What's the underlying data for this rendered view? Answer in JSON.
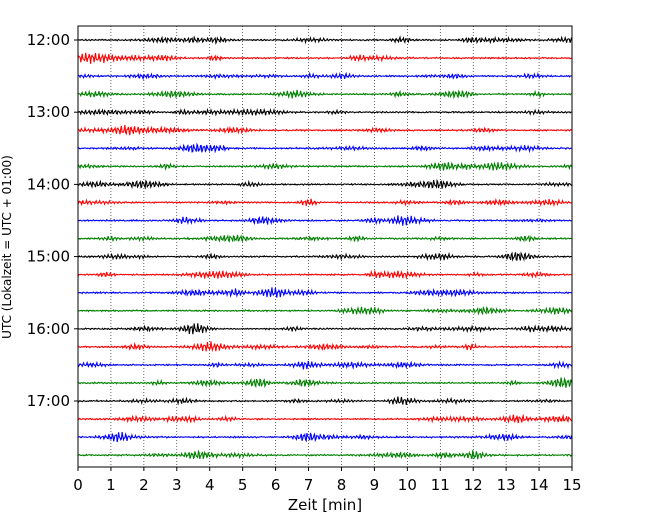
{
  "chart_data": {
    "type": "line",
    "title": "",
    "xlabel": "Zeit  [min]",
    "ylabel": "UTC (Lokalzeit = UTC + 01:00)",
    "xlim": [
      0,
      15
    ],
    "x_ticks": [
      "0",
      "1",
      "2",
      "3",
      "4",
      "5",
      "6",
      "7",
      "8",
      "9",
      "10",
      "11",
      "12",
      "13",
      "14",
      "15"
    ],
    "y_tick_labels": [
      "12:00",
      "13:00",
      "14:00",
      "15:00",
      "16:00",
      "17:00"
    ],
    "grid": "vertical dotted",
    "legend": "none",
    "trace_interval_min": 15,
    "start_time": "12:00",
    "trace_count": 24,
    "trace_colors": [
      "#000000",
      "#ff0000",
      "#0000ff",
      "#008000"
    ]
  }
}
